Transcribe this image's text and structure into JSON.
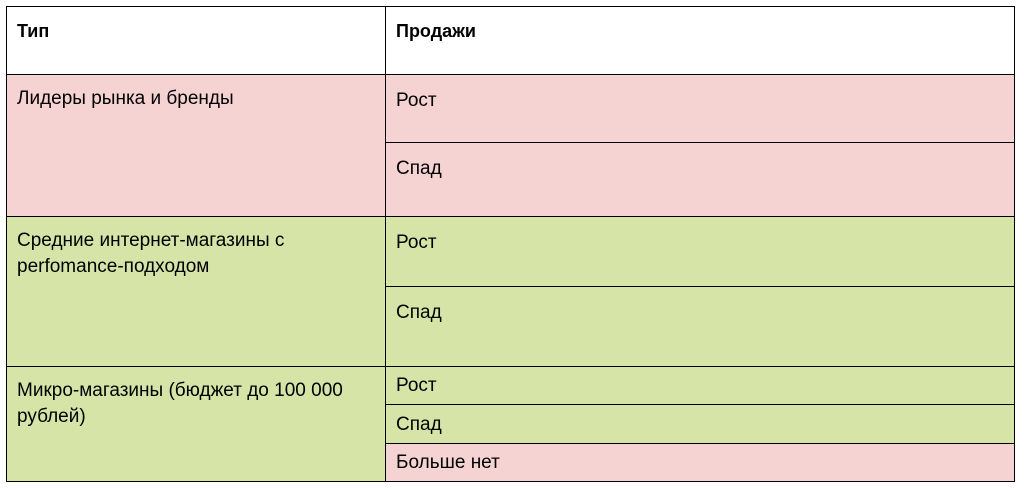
{
  "table": {
    "headers": {
      "type": "Тип",
      "sales": "Продажи"
    },
    "groups": [
      {
        "type": "Лидеры рынка и бренды",
        "rows": [
          {
            "sales": "Рост",
            "color": "#f5d3d3"
          },
          {
            "sales": "Спад",
            "color": "#f5d3d3"
          }
        ],
        "color": "#f5d3d3"
      },
      {
        "type": "Средние интернет-магазины с perfomance-подходом",
        "rows": [
          {
            "sales": "Рост",
            "color": "#d6e4a7"
          },
          {
            "sales": "Спад",
            "color": "#d6e4a7"
          }
        ],
        "color": "#d6e4a7"
      },
      {
        "type": "Микро-магазины (бюджет до 100 000 рублей)",
        "rows": [
          {
            "sales": "Рост",
            "color": "#d6e4a7"
          },
          {
            "sales": "Спад",
            "color": "#d6e4a7"
          },
          {
            "sales": "Больше нет",
            "color": "#f5d3d3"
          }
        ],
        "color": "#d6e4a7"
      }
    ]
  }
}
